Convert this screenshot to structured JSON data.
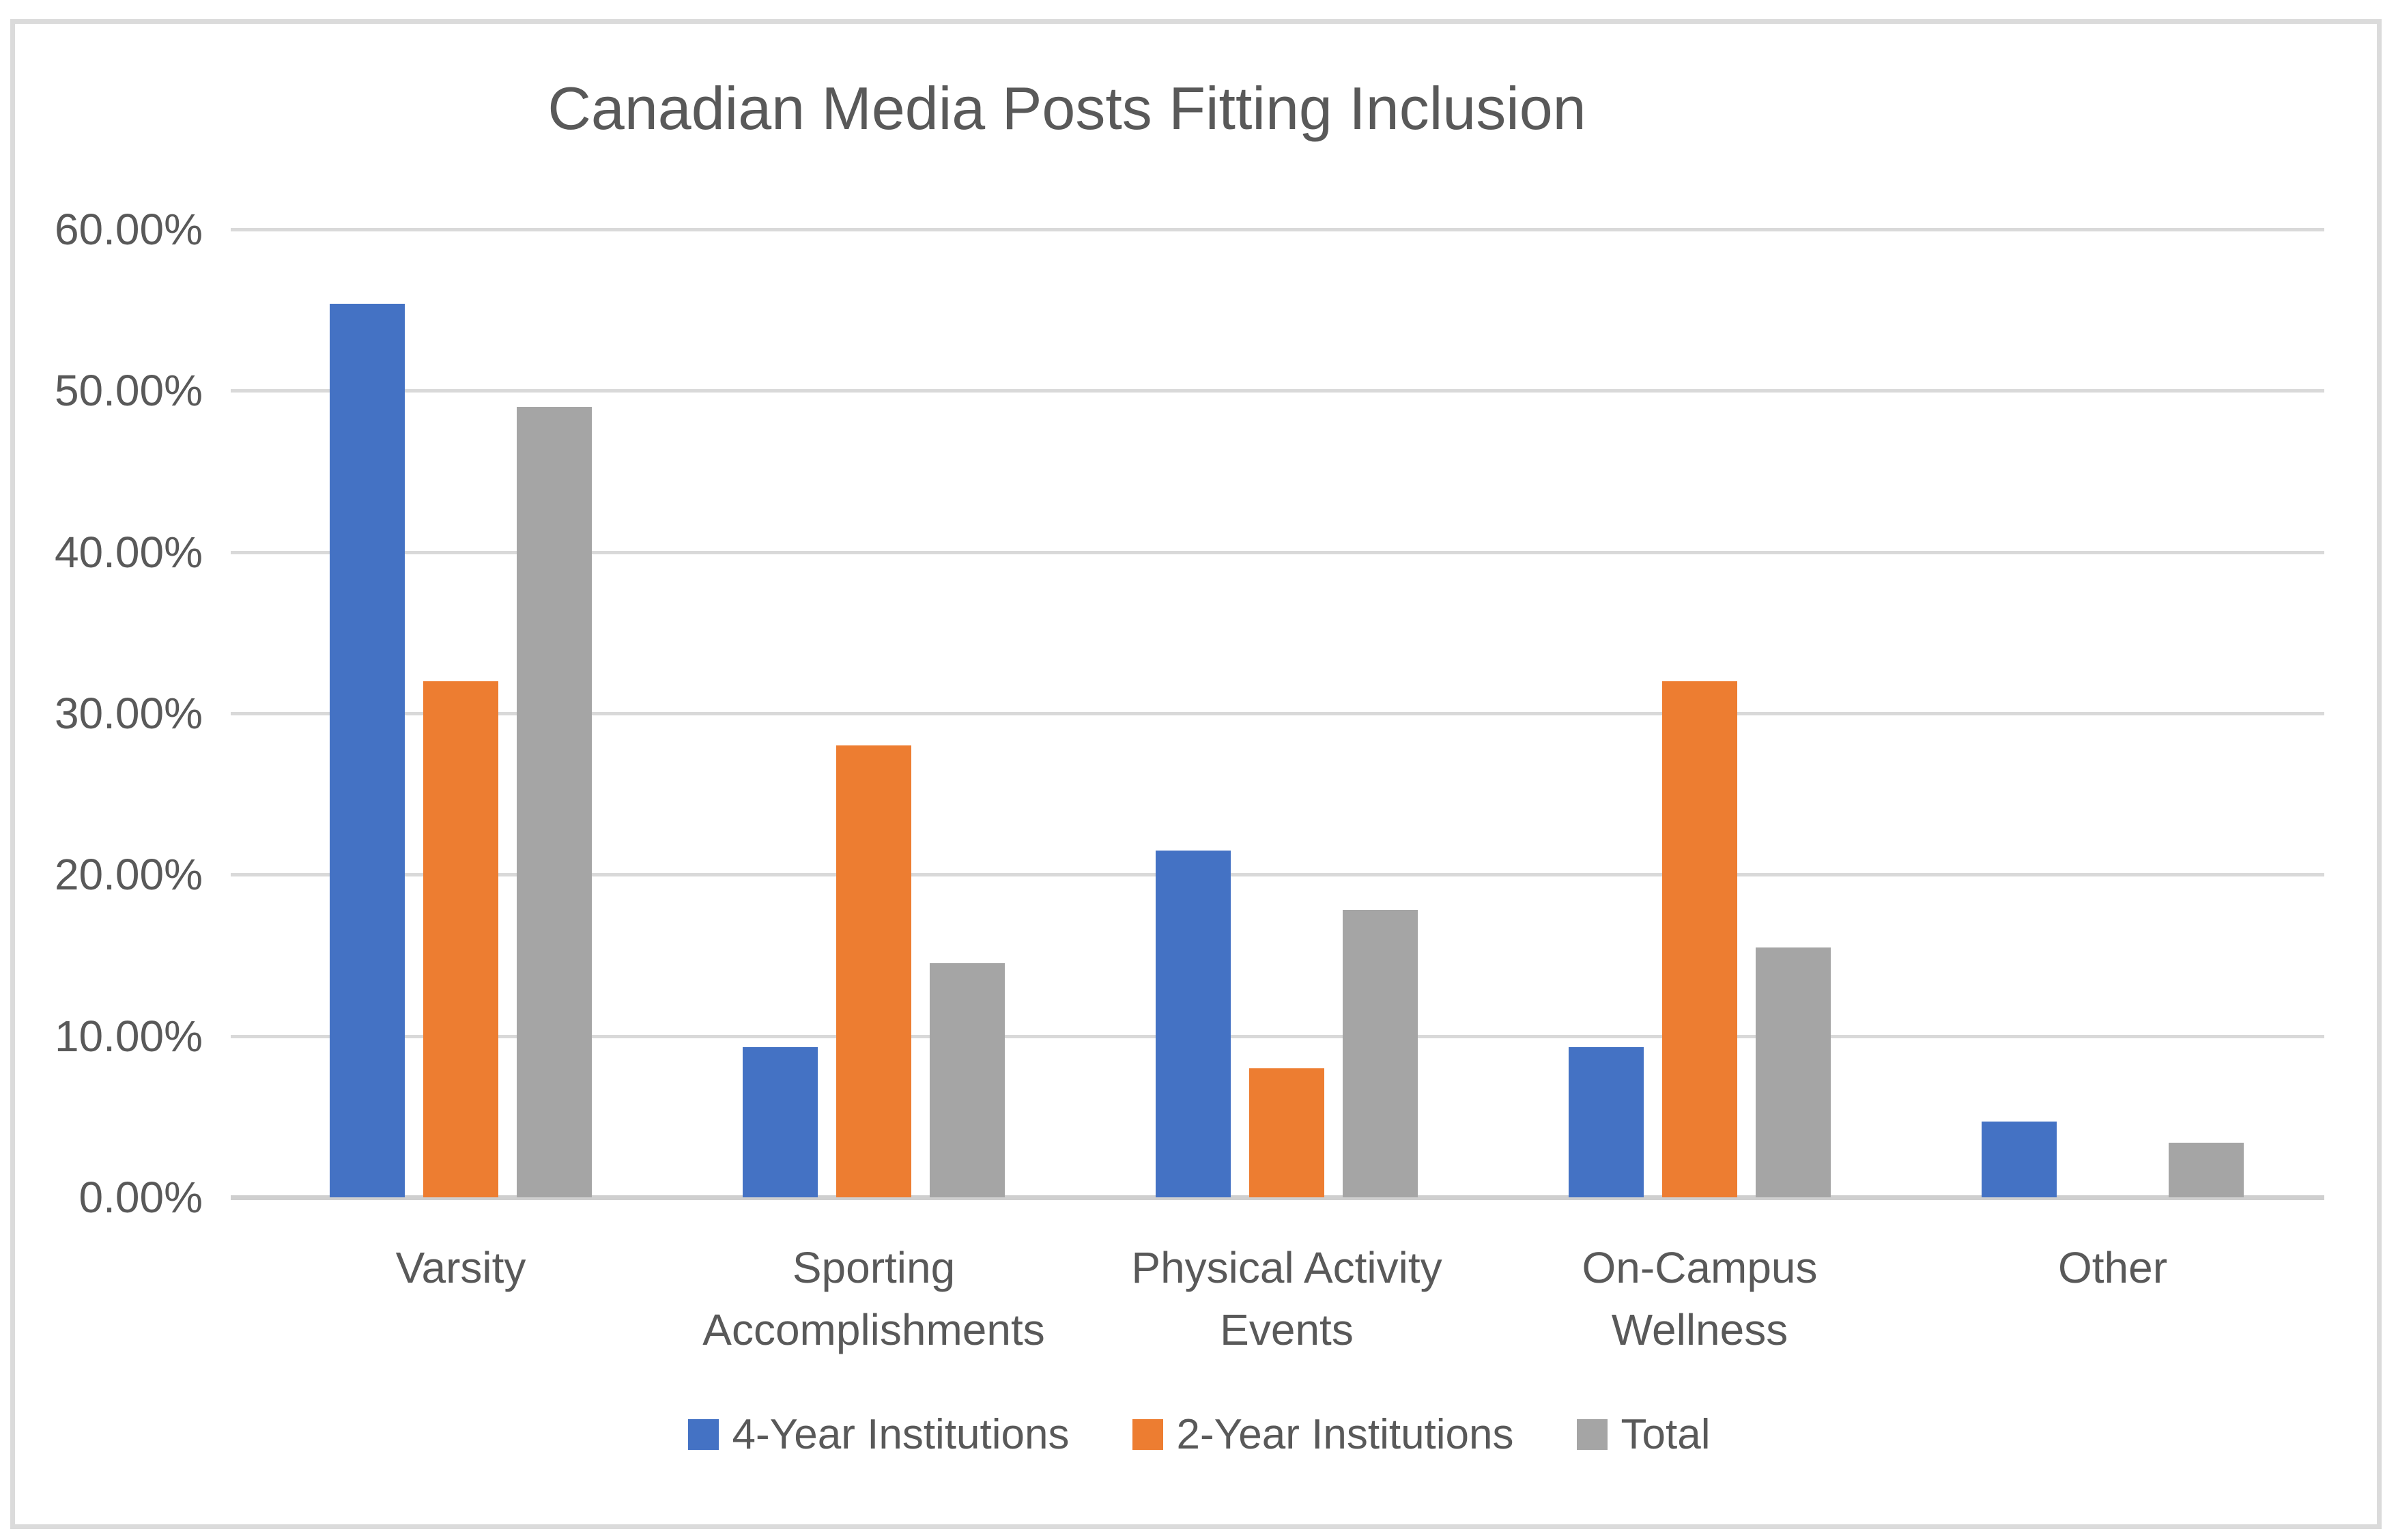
{
  "chart_data": {
    "type": "bar",
    "title": "Canadian Media Posts Fitting Inclusion",
    "categories": [
      {
        "label": "Varsity"
      },
      {
        "label": "Sporting\nAccomplishments"
      },
      {
        "label": "Physical Activity\nEvents"
      },
      {
        "label": "On-Campus\nWellness"
      },
      {
        "label": "Other"
      }
    ],
    "series": [
      {
        "name": "4-Year Institutions",
        "color": "#4472C4",
        "values": [
          55.4,
          9.3,
          21.5,
          9.3,
          4.7
        ]
      },
      {
        "name": "2-Year Institutions",
        "color": "#ED7D31",
        "values": [
          32.0,
          28.0,
          8.0,
          32.0,
          0.0
        ]
      },
      {
        "name": "Total",
        "color": "#A5A5A5",
        "values": [
          49.0,
          14.5,
          17.8,
          15.5,
          3.4
        ]
      }
    ],
    "y_ticks": [
      "0.00%",
      "10.00%",
      "20.00%",
      "30.00%",
      "40.00%",
      "50.00%",
      "60.00%"
    ],
    "ylim": [
      0,
      60
    ],
    "xlabel": "",
    "ylabel": "",
    "grid": true,
    "legend_position": "bottom",
    "text_color": "#595959",
    "gridline_color": "#D9D9D9"
  }
}
